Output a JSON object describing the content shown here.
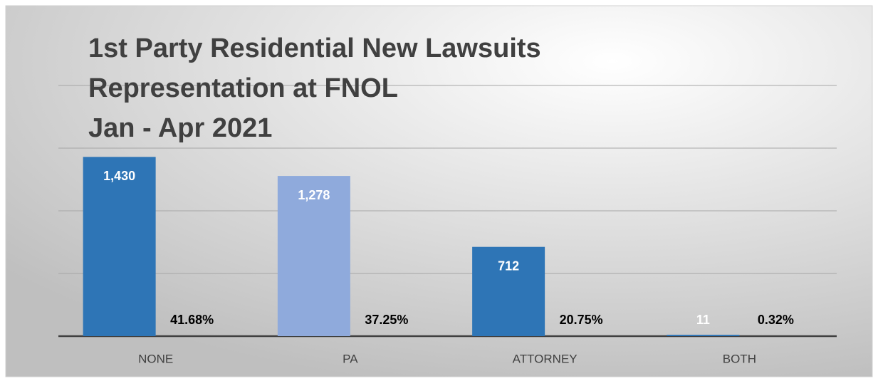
{
  "chart_data": {
    "type": "bar",
    "title": [
      "1st Party Residential New Lawsuits",
      "Representation at FNOL",
      "Jan - Apr 2021"
    ],
    "categories": [
      "NONE",
      "PA",
      "ATTORNEY",
      "BOTH"
    ],
    "series": [
      {
        "colors": [
          "#2e75b6",
          "#8faadc",
          "#2e75b6",
          "#2e75b6"
        ],
        "values": [
          1430,
          1278,
          712,
          11
        ],
        "value_labels": [
          "1,430",
          "1,278",
          "712",
          "11"
        ]
      },
      {
        "color": "none",
        "values": [
          41.68,
          37.25,
          20.75,
          0.32
        ],
        "value_labels": [
          "41.68%",
          "37.25%",
          "20.75%",
          "0.32%"
        ]
      }
    ],
    "ylim": [
      0,
      2000
    ],
    "yticks": [
      0,
      500,
      1000,
      1500,
      2000
    ],
    "grid": true
  }
}
